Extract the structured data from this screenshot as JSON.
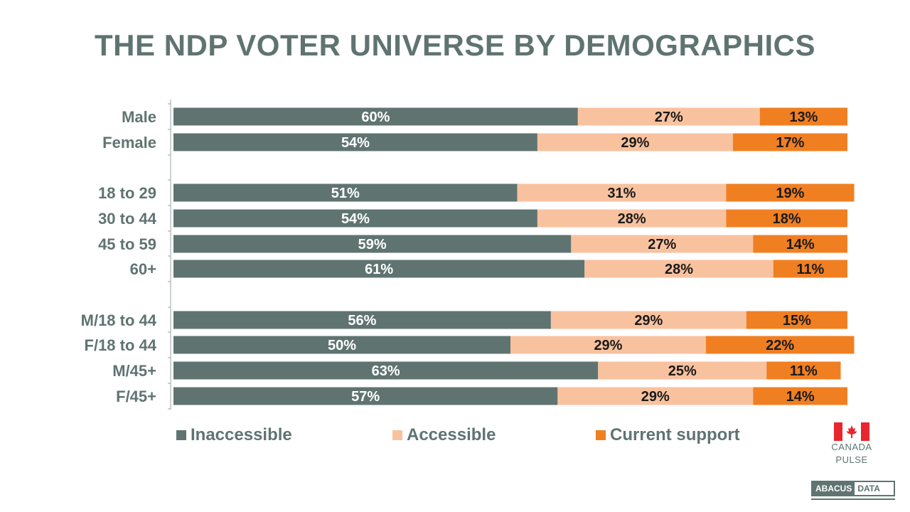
{
  "chart_data": {
    "type": "bar",
    "orientation": "horizontal",
    "stacked": true,
    "title": "THE NDP VOTER UNIVERSE BY DEMOGRAPHICS",
    "groups": [
      {
        "categories": [
          "Male",
          "Female"
        ]
      },
      {
        "categories": [
          "18 to 29",
          "30 to 44",
          "45 to 59",
          "60+"
        ]
      },
      {
        "categories": [
          "M/18 to 44",
          "F/18 to 44",
          "M/45+",
          "F/45+"
        ]
      }
    ],
    "categories": [
      "Male",
      "Female",
      "18 to 29",
      "30 to 44",
      "45 to 59",
      "60+",
      "M/18 to 44",
      "F/18 to 44",
      "M/45+",
      "F/45+"
    ],
    "series": [
      {
        "name": "Inaccessible",
        "color": "#5f7471",
        "label_color": "#ffffff",
        "values": [
          60,
          54,
          51,
          54,
          59,
          61,
          56,
          50,
          63,
          57
        ]
      },
      {
        "name": "Accessible",
        "color": "#f9c29f",
        "label_color": "#1a1a1a",
        "values": [
          27,
          29,
          31,
          28,
          27,
          28,
          29,
          29,
          25,
          29
        ]
      },
      {
        "name": "Current support",
        "color": "#f07f22",
        "label_color": "#1a1a1a",
        "values": [
          13,
          17,
          19,
          18,
          14,
          11,
          15,
          22,
          11,
          14
        ]
      }
    ],
    "value_suffix": "%",
    "xlim": [
      0,
      100
    ],
    "grid": false,
    "legend_position": "bottom"
  },
  "brand": {
    "line1": "CANADA",
    "line2": "PULSE",
    "abacus_left": "ABACUS",
    "abacus_right": "DATA",
    "flag_red": "#e8262d"
  }
}
